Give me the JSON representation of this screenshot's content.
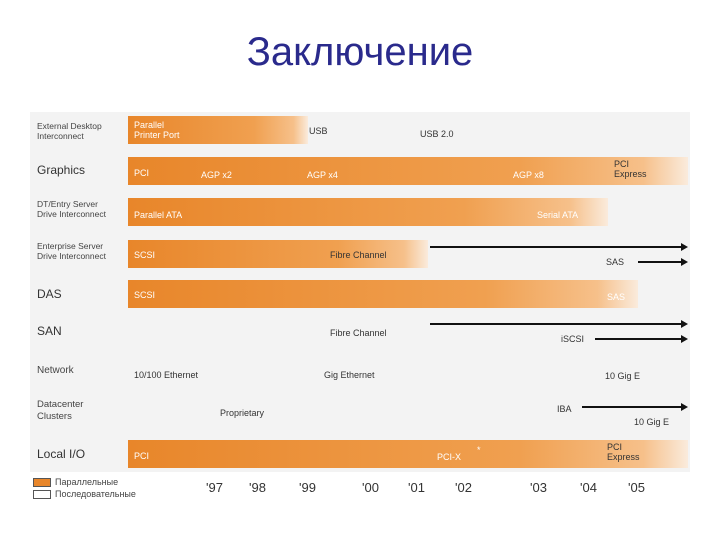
{
  "slide": {
    "title": "Заключение"
  },
  "rows": [
    {
      "label": "External Desktop\nInterconnect"
    },
    {
      "label": "Graphics"
    },
    {
      "label": "DT/Entry Server\nDrive Interconnect"
    },
    {
      "label": "Enterprise Server\nDrive Interconnect"
    },
    {
      "label": "DAS"
    },
    {
      "label": "SAN"
    },
    {
      "label": "Network"
    },
    {
      "label": "Datacenter\nClusters"
    },
    {
      "label": "Local I/O"
    }
  ],
  "segments": {
    "parallel_printer": "Parallel\nPrinter Port",
    "usb": "USB",
    "usb2": "USB 2.0",
    "pci_g": "PCI",
    "agp2": "AGP x2",
    "agp4": "AGP x4",
    "agp8": "AGP x8",
    "pci_express_g": "PCI\nExpress",
    "parallel_ata": "Parallel ATA",
    "serial_ata": "Serial ATA",
    "scsi_e": "SCSI",
    "fibre_e": "Fibre Channel",
    "sas_e": "SAS",
    "scsi_d": "SCSI",
    "sas_d": "SAS",
    "fibre_s": "Fibre Channel",
    "iscsi": "iSCSI",
    "eth100": "10/100 Ethernet",
    "gig_eth": "Gig Ethernet",
    "ten_gig": "10 Gig E",
    "proprietary": "Proprietary",
    "iba": "IBA",
    "ten_gig_e": "10 Gig E",
    "pci_l": "PCI",
    "pcix": "PCI-X",
    "pci_express_l": "PCI\nExpress",
    "star": "*"
  },
  "years": [
    "'97",
    "'98",
    "'99",
    "'00",
    "'01",
    "'02",
    "'03",
    "'04",
    "'05"
  ],
  "legend": [
    {
      "label": "Параллельные",
      "color": "#e8862a"
    },
    {
      "label": "Последовательные",
      "color": "#ffffff"
    }
  ],
  "colors": {
    "title": "#2a2a8c",
    "bar": "#e8862a"
  }
}
